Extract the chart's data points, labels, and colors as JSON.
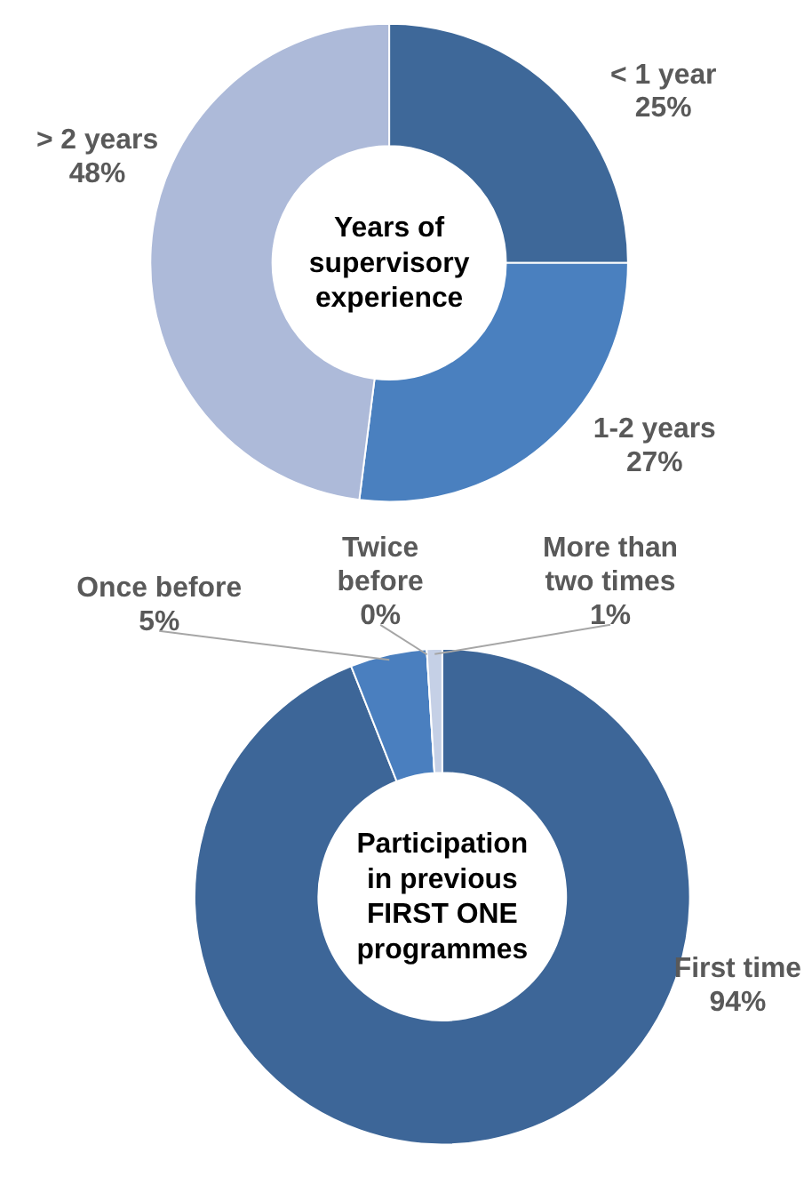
{
  "chart_data": [
    {
      "type": "donut",
      "title": "Years of supervisory experience",
      "categories": [
        "< 1 year",
        "1-2 years",
        "> 2 years"
      ],
      "values": [
        25,
        27,
        48
      ],
      "colors": [
        "#3e6899",
        "#4a80bf",
        "#adbad9"
      ],
      "value_labels": [
        "25%",
        "27%",
        "48%"
      ]
    },
    {
      "type": "donut",
      "title": "Participation in previous FIRST ONE programmes",
      "categories": [
        "First time",
        "Once before",
        "Twice before",
        "More than two times"
      ],
      "values": [
        94,
        5,
        0,
        1
      ],
      "colors": [
        "#3d6698",
        "#4a7fbf",
        "#a9b8d6",
        "#c5d0e6"
      ],
      "value_labels": [
        "94%",
        "5%",
        "0%",
        "1%"
      ]
    }
  ]
}
